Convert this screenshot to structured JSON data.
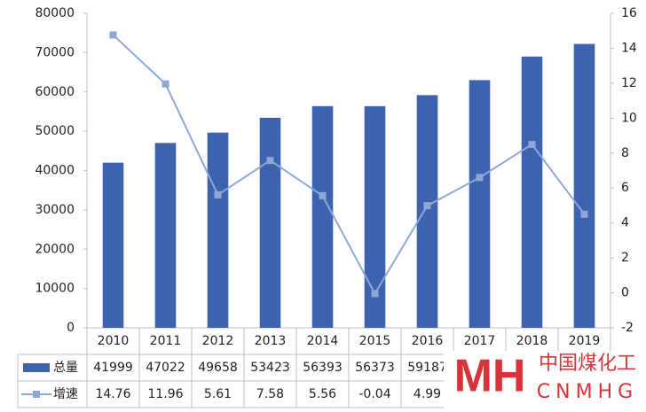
{
  "chart_data": {
    "type": "bar-line",
    "categories": [
      "2010",
      "2011",
      "2012",
      "2013",
      "2014",
      "2015",
      "2016",
      "2017",
      "2018",
      "2019"
    ],
    "series": [
      {
        "name": "总量",
        "type": "bar",
        "color": "#3d62ae",
        "values": [
          41999,
          47022,
          49658,
          53423,
          56393,
          56373,
          59187,
          63000,
          69000,
          72200
        ]
      },
      {
        "name": "增速",
        "type": "line",
        "axis": "y2",
        "color": "#8ea7d8",
        "values": [
          14.76,
          11.96,
          5.61,
          7.58,
          5.56,
          -0.04,
          4.99,
          6.6,
          8.5,
          4.5
        ]
      }
    ],
    "ylim": [
      0,
      80000
    ],
    "yticks": [
      0,
      10000,
      20000,
      30000,
      40000,
      50000,
      60000,
      70000,
      80000
    ],
    "y2lim": [
      -2,
      16
    ],
    "y2ticks": [
      -2,
      0,
      2,
      4,
      6,
      8,
      10,
      12,
      14,
      16
    ],
    "grid": false,
    "data_table": true
  },
  "watermark": {
    "mark": "MH",
    "name": "中国煤化工",
    "code": "CNMHG"
  }
}
